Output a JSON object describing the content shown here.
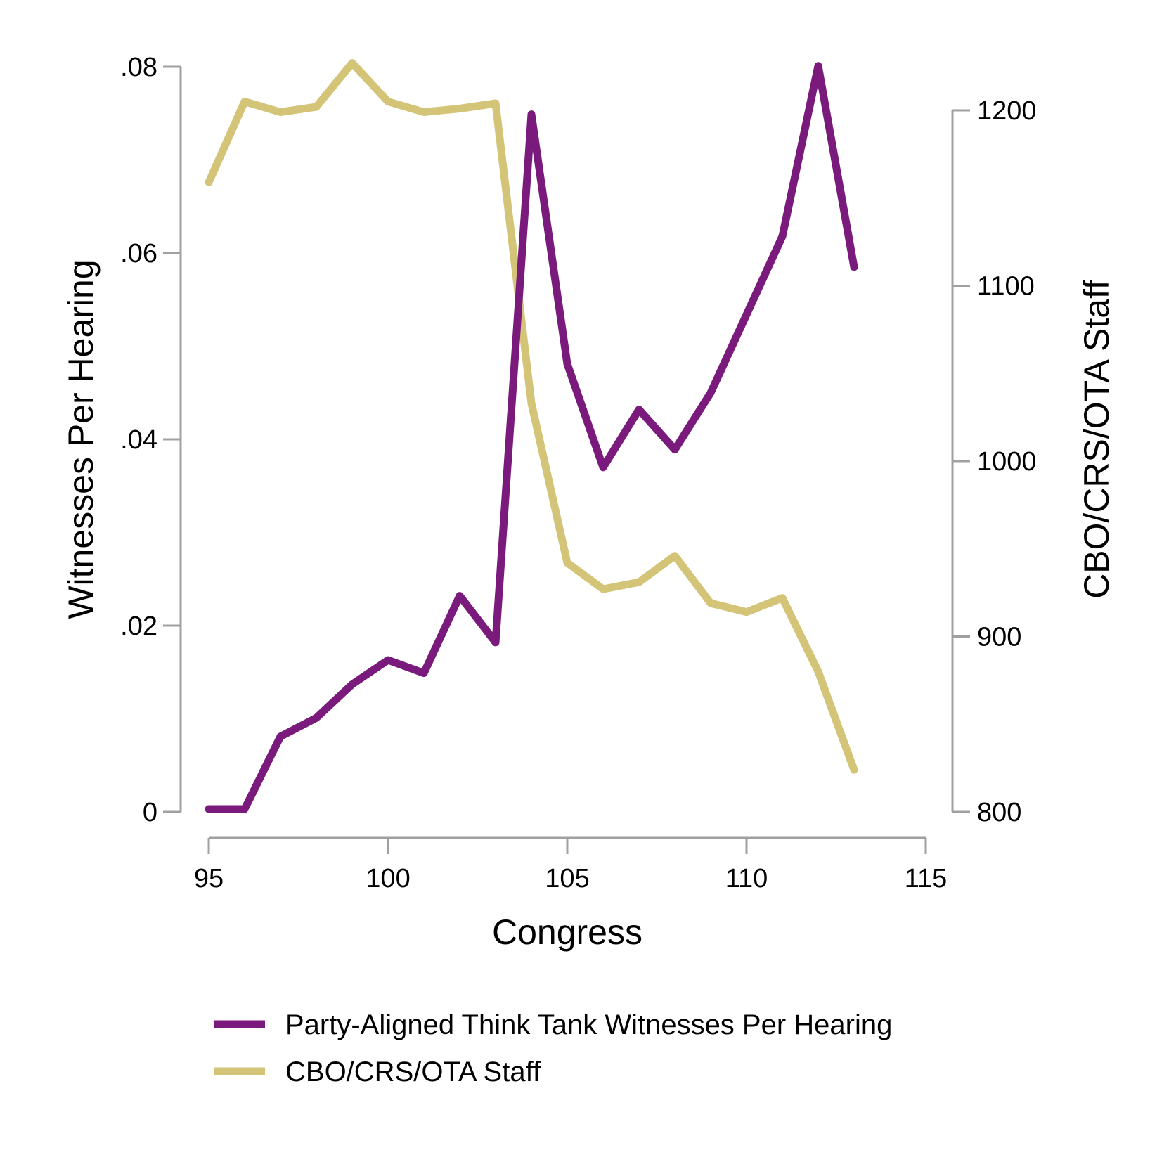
{
  "chart_data": {
    "type": "line",
    "xlabel": "Congress",
    "ylabel_left": "Witnesses Per Hearing",
    "ylabel_right": "CBO/CRS/OTA Staff",
    "x": [
      95,
      96,
      97,
      98,
      99,
      100,
      101,
      102,
      103,
      104,
      105,
      106,
      107,
      108,
      109,
      110,
      111,
      112,
      113
    ],
    "xlim": [
      95,
      115
    ],
    "x_ticks": [
      "95",
      "100",
      "105",
      "110",
      "115"
    ],
    "ylim_left": [
      0,
      0.08
    ],
    "y_ticks_left": [
      ".08",
      ".06",
      ".04",
      ".02",
      "0"
    ],
    "ylim_right": [
      800,
      1200
    ],
    "y_ticks_right": [
      "1200",
      "1100",
      "1000",
      "900",
      "800"
    ],
    "grid": false,
    "legend_position": "bottom",
    "series": [
      {
        "name": "Party-Aligned Think Tank Witnesses Per Hearing",
        "axis": "left",
        "color": "#7a1a7c",
        "values": [
          0.0003,
          0.0003,
          0.0081,
          0.0101,
          0.0137,
          0.0163,
          0.0149,
          0.0232,
          0.0182,
          0.0749,
          0.0481,
          0.037,
          0.0432,
          0.0389,
          0.045,
          0.0534,
          0.0618,
          0.0801,
          0.0585
        ]
      },
      {
        "name": "CBO/CRS/OTA Staff",
        "axis": "right",
        "color": "#d4c478",
        "values": [
          1159,
          1205,
          1199,
          1202,
          1227,
          1205,
          1199,
          1201,
          1204,
          1033,
          942,
          927,
          931,
          946,
          919,
          914,
          922,
          880,
          824
        ]
      }
    ]
  }
}
